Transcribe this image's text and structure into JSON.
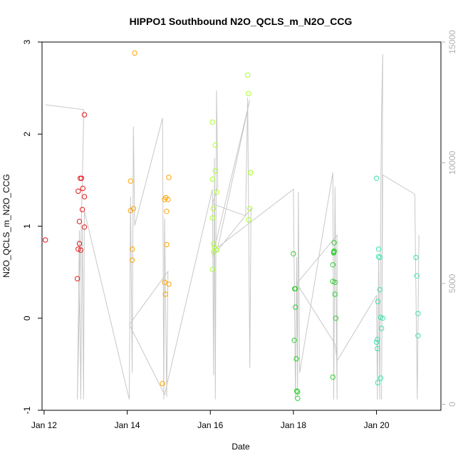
{
  "chart_data": {
    "type": "scatter",
    "title": "HIPPO1 Southbound N2O_QCLS_m_N2O_CCG",
    "xlabel": "Date",
    "ylabel": "N2O_QCLS_m_N2O_CCG",
    "xlim": [
      11.95,
      21.55
    ],
    "ylim": [
      -1.0,
      3.0
    ],
    "y2lim": [
      -250,
      15000
    ],
    "x_ticks": [
      {
        "value": 12,
        "label": "Jan 12"
      },
      {
        "value": 14,
        "label": "Jan 14"
      },
      {
        "value": 16,
        "label": "Jan 16"
      },
      {
        "value": 18,
        "label": "Jan 18"
      },
      {
        "value": 20,
        "label": "Jan 20"
      }
    ],
    "y_ticks": [
      {
        "value": -1,
        "label": "-1"
      },
      {
        "value": 0,
        "label": "0"
      },
      {
        "value": 1,
        "label": "1"
      },
      {
        "value": 2,
        "label": "2"
      },
      {
        "value": 3,
        "label": "3"
      }
    ],
    "y2_ticks": [
      {
        "value": 0,
        "label": "0"
      },
      {
        "value": 5000,
        "label": "5000"
      },
      {
        "value": 10000,
        "label": "10000"
      },
      {
        "value": 15000,
        "label": "15000"
      }
    ],
    "grid": false,
    "legend": "none",
    "altitude_color": "#c8c8c8",
    "right_axis_color": "#b0b0b0",
    "altitude_track": [
      [
        12.03,
        12400
      ],
      [
        12.95,
        12200
      ],
      [
        12.95,
        11600
      ],
      [
        12.8,
        200
      ],
      [
        12.85,
        7200
      ],
      [
        12.88,
        200
      ],
      [
        12.92,
        7300
      ],
      [
        12.95,
        200
      ],
      [
        12.97,
        8000
      ],
      [
        14.05,
        200
      ],
      [
        14.08,
        8600
      ],
      [
        14.12,
        1300
      ],
      [
        14.15,
        11500
      ],
      [
        14.18,
        7400
      ],
      [
        14.85,
        11850
      ],
      [
        14.88,
        200
      ],
      [
        14.9,
        7700
      ],
      [
        14.95,
        300
      ],
      [
        14.98,
        5500
      ],
      [
        14.05,
        3300
      ],
      [
        14.9,
        400
      ],
      [
        16.05,
        8900
      ],
      [
        16.08,
        1200
      ],
      [
        16.1,
        10200
      ],
      [
        16.12,
        200
      ],
      [
        16.15,
        13000
      ],
      [
        16.18,
        9000
      ],
      [
        16.05,
        8300
      ],
      [
        16.85,
        7800
      ],
      [
        16.9,
        12700
      ],
      [
        16.95,
        1500
      ],
      [
        16.98,
        8100
      ],
      [
        16.05,
        6100
      ],
      [
        16.95,
        12600
      ],
      [
        16.18,
        6500
      ],
      [
        18.0,
        8900
      ],
      [
        18.05,
        200
      ],
      [
        18.08,
        6100
      ],
      [
        18.1,
        300
      ],
      [
        18.12,
        8800
      ],
      [
        18.15,
        1300
      ],
      [
        18.95,
        9600
      ],
      [
        18.97,
        200
      ],
      [
        19.0,
        9000
      ],
      [
        19.05,
        200
      ],
      [
        19.05,
        7000
      ],
      [
        18.08,
        5000
      ],
      [
        19.0,
        2500
      ],
      [
        19.05,
        1800
      ],
      [
        20.0,
        4500
      ],
      [
        20.02,
        200
      ],
      [
        20.05,
        6000
      ],
      [
        20.08,
        200
      ],
      [
        20.1,
        8000
      ],
      [
        20.12,
        12000
      ],
      [
        20.15,
        14500
      ],
      [
        20.12,
        200
      ],
      [
        20.15,
        9500
      ],
      [
        20.92,
        8700
      ],
      [
        20.98,
        200
      ],
      [
        21.02,
        7000
      ]
    ],
    "series": [
      {
        "color": "#e41a1c",
        "points": [
          [
            12.03,
            0.85
          ],
          [
            12.8,
            0.43
          ],
          [
            12.82,
            0.75
          ],
          [
            12.82,
            1.38
          ],
          [
            12.85,
            1.05
          ],
          [
            12.85,
            0.81
          ],
          [
            12.87,
            1.52
          ],
          [
            12.88,
            0.74
          ],
          [
            12.9,
            1.52
          ],
          [
            12.92,
            1.18
          ],
          [
            12.93,
            1.41
          ],
          [
            12.97,
            1.32
          ],
          [
            12.97,
            0.99
          ],
          [
            12.97,
            2.21
          ]
        ]
      },
      {
        "color": "#ffa500",
        "points": [
          [
            14.08,
            1.49
          ],
          [
            14.08,
            1.17
          ],
          [
            14.12,
            0.75
          ],
          [
            14.12,
            0.63
          ],
          [
            14.15,
            1.19
          ],
          [
            14.18,
            2.88
          ],
          [
            14.85,
            -0.71
          ],
          [
            14.9,
            1.29
          ],
          [
            14.9,
            0.39
          ],
          [
            14.92,
            0.26
          ],
          [
            14.93,
            1.31
          ],
          [
            14.95,
            1.16
          ],
          [
            14.95,
            0.8
          ],
          [
            14.98,
            1.29
          ],
          [
            15.0,
            1.53
          ],
          [
            15.0,
            0.37
          ]
        ]
      },
      {
        "color": "#adff2f",
        "points": [
          [
            16.05,
            2.13
          ],
          [
            16.05,
            1.51
          ],
          [
            16.05,
            1.09
          ],
          [
            16.05,
            0.53
          ],
          [
            16.07,
            1.19
          ],
          [
            16.08,
            0.81
          ],
          [
            16.08,
            0.72
          ],
          [
            16.1,
            0.77
          ],
          [
            16.12,
            1.6
          ],
          [
            16.12,
            1.88
          ],
          [
            16.15,
            1.37
          ],
          [
            16.15,
            0.74
          ],
          [
            16.9,
            2.64
          ],
          [
            16.92,
            2.44
          ],
          [
            16.92,
            1.07
          ],
          [
            16.95,
            1.19
          ],
          [
            16.97,
            1.58
          ],
          [
            16.97,
            1.58
          ]
        ]
      },
      {
        "color": "#32cd32",
        "points": [
          [
            18.0,
            0.7
          ],
          [
            18.02,
            -0.24
          ],
          [
            18.03,
            0.32
          ],
          [
            18.05,
            0.32
          ],
          [
            18.05,
            0.12
          ],
          [
            18.07,
            -0.44
          ],
          [
            18.08,
            -0.79
          ],
          [
            18.1,
            -0.8
          ],
          [
            18.1,
            -0.87
          ],
          [
            18.95,
            -0.64
          ],
          [
            18.95,
            0.58
          ],
          [
            18.95,
            0.4
          ],
          [
            18.97,
            0.72
          ],
          [
            18.97,
            0.71
          ],
          [
            18.98,
            0.82
          ],
          [
            18.98,
            0.73
          ],
          [
            19.0,
            0.39
          ],
          [
            19.0,
            0.26
          ],
          [
            19.02,
            0.0
          ]
        ]
      },
      {
        "color": "#40e0b0",
        "points": [
          [
            20.0,
            1.52
          ],
          [
            20.0,
            -0.26
          ],
          [
            20.02,
            -0.23
          ],
          [
            20.02,
            -0.33
          ],
          [
            20.03,
            0.18
          ],
          [
            20.03,
            -0.7
          ],
          [
            20.05,
            0.75
          ],
          [
            20.05,
            0.67
          ],
          [
            20.08,
            0.66
          ],
          [
            20.08,
            0.31
          ],
          [
            20.1,
            0.01
          ],
          [
            20.1,
            -0.65
          ],
          [
            20.12,
            -0.11
          ],
          [
            20.15,
            0.0
          ],
          [
            20.95,
            0.66
          ],
          [
            20.97,
            0.46
          ],
          [
            21.0,
            0.05
          ],
          [
            21.0,
            -0.19
          ]
        ]
      }
    ]
  }
}
